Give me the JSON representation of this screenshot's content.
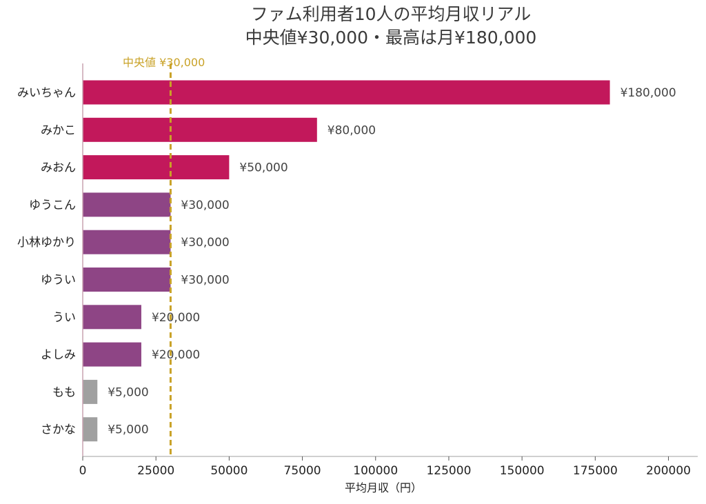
{
  "chart_data": {
    "type": "bar",
    "orientation": "horizontal",
    "title_lines": [
      "ファム利用者10人の平均月収リアル",
      "中央値¥30,000・最高は月¥180,000"
    ],
    "xlabel": "平均月収（円）",
    "ylabel": "",
    "categories": [
      "みいちゃん",
      "みかこ",
      "みおん",
      "ゆうこん",
      "小林ゆかり",
      "ゆうい",
      "うい",
      "よしみ",
      "もも",
      "さかな"
    ],
    "values": [
      180000,
      80000,
      50000,
      30000,
      30000,
      30000,
      20000,
      20000,
      5000,
      5000
    ],
    "value_labels": [
      "¥180,000",
      "¥80,000",
      "¥50,000",
      "¥30,000",
      "¥30,000",
      "¥30,000",
      "¥20,000",
      "¥20,000",
      "¥5,000",
      "¥5,000"
    ],
    "bar_colors": [
      "#c2185b",
      "#c2185b",
      "#c2185b",
      "#8e4585",
      "#8e4585",
      "#8e4585",
      "#8e4585",
      "#8e4585",
      "#a0a0a0",
      "#a0a0a0"
    ],
    "xlim": [
      0,
      210000
    ],
    "xticks": [
      0,
      25000,
      50000,
      75000,
      100000,
      125000,
      150000,
      175000,
      200000
    ],
    "xtick_labels": [
      "0",
      "25000",
      "50000",
      "75000",
      "100000",
      "125000",
      "150000",
      "175000",
      "200000"
    ],
    "reference_line": {
      "value": 30000,
      "label": "中央値 ¥30,000",
      "color": "#c9a227",
      "style": "dashed"
    },
    "grid": false,
    "legend": "none"
  }
}
